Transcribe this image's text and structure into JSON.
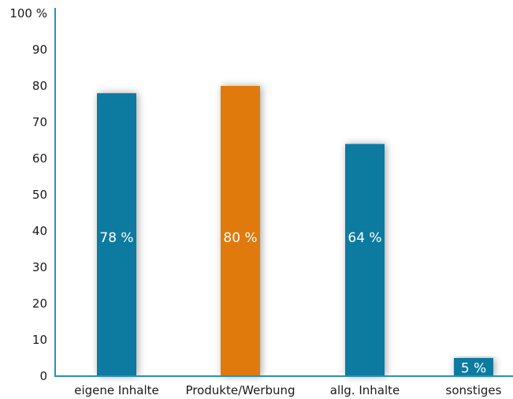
{
  "chart_data": {
    "type": "bar",
    "categories": [
      "eigene Inhalte",
      "Produkte/Werbung",
      "allg. Inhalte",
      "sonstiges"
    ],
    "values": [
      78,
      80,
      64,
      5
    ],
    "value_labels": [
      "78 %",
      "80 %",
      "64 %",
      "5 %"
    ],
    "bar_colors": [
      "#0b7aa0",
      "#e07a0a",
      "#0b7aa0",
      "#0b7aa0"
    ],
    "axis_color": "#2a8fc0",
    "ylim": [
      0,
      100
    ],
    "yticks": [
      0,
      10,
      20,
      30,
      40,
      50,
      60,
      70,
      80,
      90,
      100
    ],
    "ytick_labels": [
      "0",
      "10",
      "20",
      "30",
      "40",
      "50",
      "60",
      "70",
      "80",
      "90",
      "100 %"
    ],
    "grid": false,
    "legend": "none"
  }
}
